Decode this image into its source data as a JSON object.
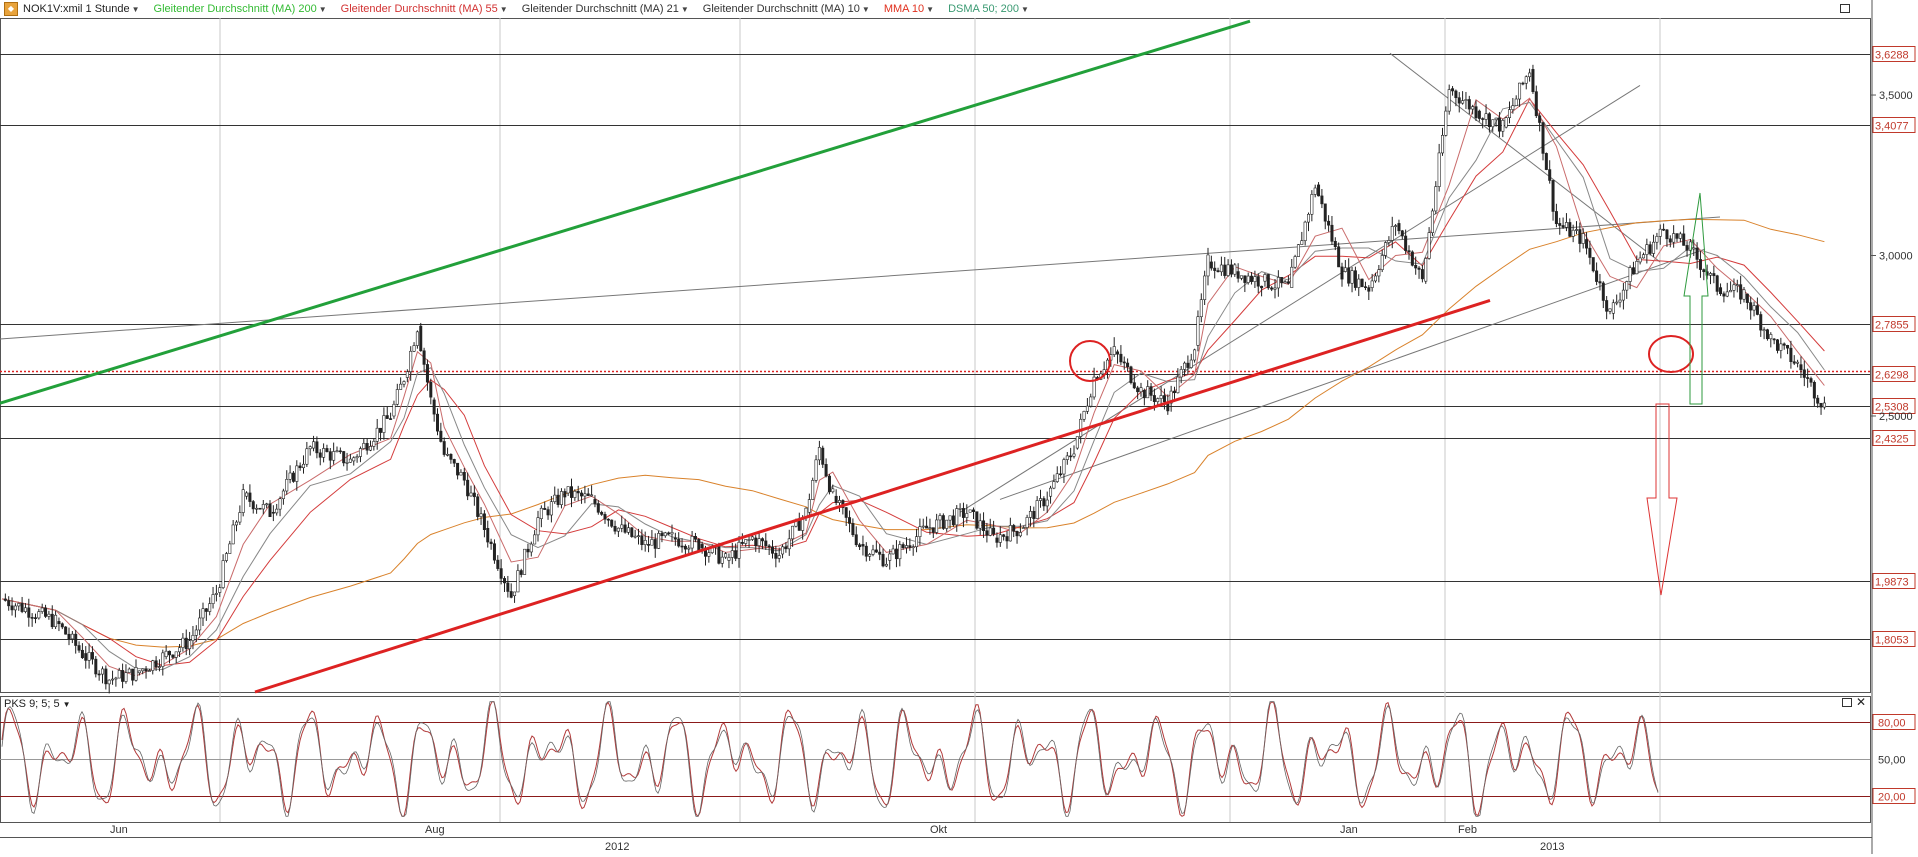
{
  "legend": {
    "symbol": "NOK1V:xmil 1 Stunde",
    "indicators": [
      {
        "label": "Gleitender Durchschnitt (MA) 200",
        "color": "#33bb33"
      },
      {
        "label": "Gleitender Durchschnitt (MA) 55",
        "color": "#d23232"
      },
      {
        "label": "Gleitender Durchschnitt (MA) 21",
        "color": "#333333"
      },
      {
        "label": "Gleitender Durchschnitt (MA) 10",
        "color": "#333333"
      },
      {
        "label": "MMA 10",
        "color": "#e0301e"
      },
      {
        "label": "DSMA 50; 200",
        "color": "#3a9a72"
      }
    ]
  },
  "oscillator": {
    "label": "PKS 9; 5; 5",
    "levels": [
      "80,00",
      "50,00",
      "20,00"
    ]
  },
  "colors": {
    "price_up": "#ffffff",
    "price_down": "#222222",
    "green_trend": "#22a03a",
    "red_trend": "#dd2222",
    "ma_orange": "#d9822b",
    "ma_red": "#d43c3c",
    "grid": "#c8c8c8",
    "level_line": "#333333",
    "osc": "#b23a3a",
    "label_price": "#c0392b"
  },
  "chart_data": {
    "type": "line",
    "title": "NOK1V:xmil 1 Stunde",
    "x_labels": [
      "Jun",
      "Aug",
      "Okt",
      "Jan",
      "Feb"
    ],
    "year_labels": [
      "2012",
      "2013"
    ],
    "y_tick_labels": [
      "3,5000",
      "3,0000",
      "2,5000"
    ],
    "horizontal_levels": [
      "3,6288",
      "3,4077",
      "2,7855",
      "2,6298",
      "2,5308",
      "2,4325",
      "1,9873",
      "1,8053"
    ],
    "ylim": [
      1.64,
      3.74
    ],
    "price_path": {
      "x_index": [
        0,
        40,
        60,
        80,
        100,
        120,
        140,
        160,
        180,
        200,
        230,
        260,
        290,
        300,
        310,
        320,
        330,
        345,
        360,
        380,
        400,
        420,
        440,
        460,
        480,
        500,
        520,
        540,
        560,
        580,
        600,
        610,
        620,
        640,
        660,
        690,
        720,
        740,
        760,
        780,
        800,
        815,
        830,
        850,
        870,
        890,
        900,
        920,
        940,
        960,
        980,
        1000,
        1020,
        1040,
        1060,
        1080,
        1100,
        1120,
        1140,
        1160,
        1180,
        1200,
        1220,
        1240,
        1260,
        1280,
        1300,
        1320,
        1340,
        1360
      ],
      "close": [
        1.93,
        1.86,
        1.76,
        1.68,
        1.7,
        1.75,
        1.8,
        1.95,
        2.25,
        2.2,
        2.4,
        2.36,
        2.5,
        2.62,
        2.78,
        2.55,
        2.38,
        2.3,
        2.15,
        1.94,
        2.18,
        2.26,
        2.24,
        2.15,
        2.1,
        2.12,
        2.1,
        2.05,
        2.12,
        2.07,
        2.2,
        2.4,
        2.25,
        2.1,
        2.05,
        2.15,
        2.2,
        2.12,
        2.15,
        2.25,
        2.4,
        2.62,
        2.7,
        2.58,
        2.54,
        2.72,
        2.98,
        2.95,
        2.92,
        2.9,
        3.22,
        2.95,
        2.9,
        3.1,
        2.92,
        3.52,
        3.45,
        3.4,
        3.58,
        3.1,
        3.05,
        2.82,
        2.98,
        3.08,
        3.02,
        2.9,
        2.88,
        2.74,
        2.66,
        2.53
      ]
    },
    "trend_lines": [
      {
        "name": "green",
        "from": [
          0,
          2.54
        ],
        "to": [
          1250,
          3.73
        ]
      },
      {
        "name": "red",
        "from": [
          255,
          1.64
        ],
        "to": [
          1490,
          2.86
        ]
      }
    ]
  }
}
